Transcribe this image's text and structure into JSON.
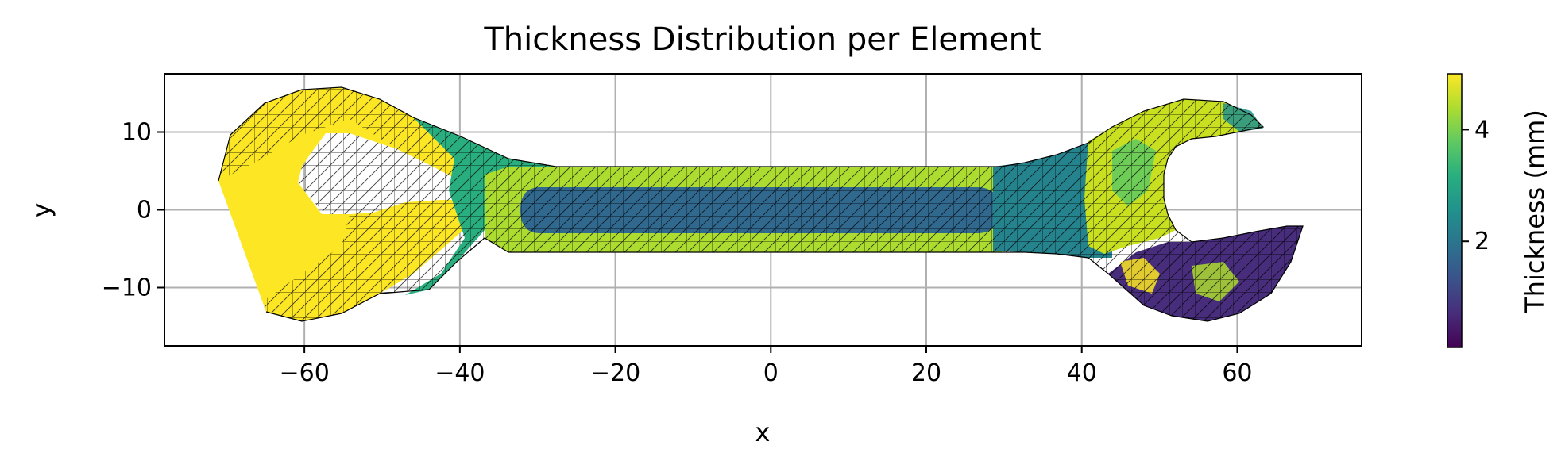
{
  "chart_data": {
    "type": "heatmap",
    "title": "Thickness Distribution per Element",
    "xlabel": "x",
    "ylabel": "y",
    "xlim": [
      -78,
      76
    ],
    "ylim": [
      -17.5,
      17.5
    ],
    "xticks": [
      -60,
      -40,
      -20,
      0,
      20,
      40,
      60
    ],
    "xtick_labels": [
      "−60",
      "−40",
      "−20",
      "0",
      "20",
      "40",
      "60"
    ],
    "yticks": [
      10,
      0,
      -10
    ],
    "ytick_labels": [
      "10",
      "0",
      "−10"
    ],
    "grid": true,
    "colormap": "viridis",
    "colorbar": {
      "label": "Thickness (mm)",
      "range": [
        0.1,
        5.0
      ],
      "ticks": [
        2,
        4
      ],
      "tick_labels": [
        "2",
        "4"
      ]
    },
    "thickness_regions": [
      {
        "region": "left jaw",
        "thickness": 5.0
      },
      {
        "region": "left neck",
        "thickness": 3.3
      },
      {
        "region": "handle outer band",
        "thickness": 4.2
      },
      {
        "region": "handle center slot",
        "thickness": 2.1
      },
      {
        "region": "right neck",
        "thickness": 2.8
      },
      {
        "region": "right jaw upper",
        "thickness": 4.8
      },
      {
        "region": "right jaw lower",
        "thickness": 0.4
      }
    ]
  }
}
